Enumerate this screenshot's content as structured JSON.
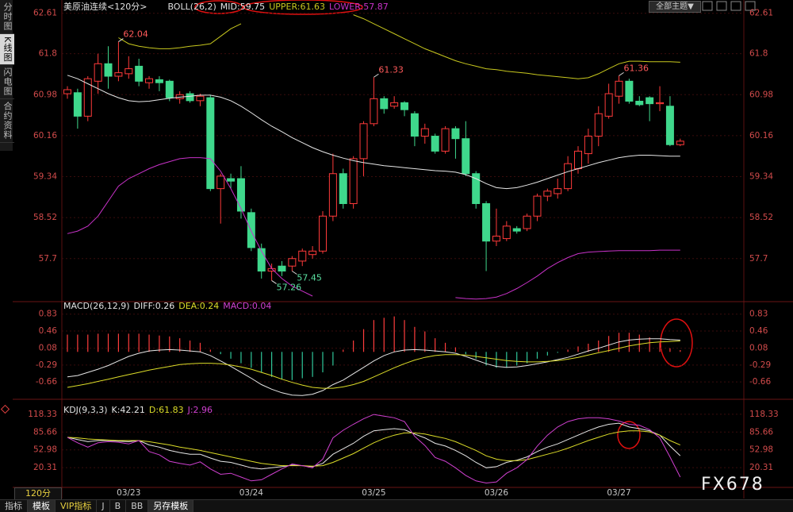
{
  "chart_data": [
    {
      "type": "candlestick",
      "title": "美原油连续<120分>",
      "indicator": "BOLL(26,2)",
      "categories": [
        null,
        null,
        null,
        null,
        null,
        null,
        "03/23",
        null,
        null,
        null,
        null,
        null,
        null,
        null,
        null,
        null,
        null,
        null,
        "03/24",
        null,
        null,
        null,
        null,
        null,
        null,
        null,
        null,
        null,
        null,
        null,
        "03/25",
        null,
        null,
        null,
        null,
        null,
        null,
        null,
        null,
        null,
        null,
        null,
        "03/26",
        null,
        null,
        null,
        null,
        null,
        null,
        null,
        null,
        null,
        null,
        null,
        "03/27",
        null,
        null,
        null,
        null,
        null,
        null
      ],
      "open": [
        61.0,
        61.02,
        60.55,
        61.25,
        61.6,
        61.35,
        61.4,
        61.55,
        61.22,
        61.28,
        61.25,
        60.9,
        61.0,
        60.86,
        60.92,
        59.1,
        59.3,
        59.3,
        58.62,
        57.9,
        57.45,
        57.55,
        57.55,
        57.65,
        57.78,
        57.85,
        58.55,
        59.4,
        58.8,
        59.7,
        60.4,
        60.9,
        60.75,
        60.82,
        60.6,
        60.15,
        60.15,
        59.85,
        60.3,
        60.1,
        59.4,
        58.8,
        58.05,
        58.1,
        58.3,
        58.3,
        58.55,
        58.95,
        59.0,
        59.1,
        59.5,
        59.8,
        60.15,
        60.55,
        60.95,
        61.25,
        60.85,
        60.92,
        60.8,
        60.75,
        59.98
      ],
      "high": [
        61.15,
        61.1,
        61.35,
        61.8,
        61.95,
        62.04,
        61.75,
        61.7,
        61.35,
        61.35,
        61.28,
        61.05,
        61.05,
        61.0,
        60.98,
        59.4,
        59.4,
        59.55,
        58.7,
        58.0,
        57.6,
        57.65,
        57.75,
        57.9,
        57.95,
        58.65,
        59.8,
        59.5,
        59.75,
        60.45,
        61.33,
        60.95,
        60.95,
        60.85,
        60.65,
        60.4,
        60.2,
        60.35,
        60.35,
        60.45,
        59.45,
        58.85,
        58.7,
        58.45,
        58.35,
        58.6,
        59.0,
        59.1,
        59.3,
        59.75,
        59.95,
        60.3,
        60.75,
        61.2,
        61.36,
        61.3,
        60.95,
        60.95,
        61.15,
        60.95,
        60.1
      ],
      "low": [
        60.9,
        60.3,
        60.45,
        61.0,
        61.1,
        61.25,
        61.3,
        61.15,
        61.1,
        61.05,
        60.85,
        60.8,
        60.82,
        60.75,
        59.05,
        58.4,
        59.1,
        58.5,
        57.85,
        57.3,
        57.26,
        57.35,
        57.45,
        57.55,
        57.7,
        57.8,
        58.45,
        58.7,
        58.7,
        59.35,
        60.35,
        60.6,
        60.7,
        60.55,
        59.95,
        60.0,
        59.8,
        59.8,
        59.7,
        59.35,
        58.7,
        57.45,
        57.95,
        58.05,
        58.2,
        58.25,
        58.45,
        58.85,
        58.9,
        59.05,
        59.4,
        59.6,
        59.95,
        60.5,
        60.8,
        60.8,
        60.75,
        60.45,
        60.65,
        59.95,
        59.95
      ],
      "close": [
        61.08,
        60.55,
        61.3,
        61.6,
        61.35,
        61.42,
        61.5,
        61.25,
        61.3,
        61.22,
        60.92,
        60.98,
        60.86,
        60.95,
        59.1,
        59.35,
        59.25,
        58.65,
        57.92,
        57.45,
        57.5,
        57.45,
        57.7,
        57.85,
        57.85,
        58.55,
        59.4,
        58.8,
        59.7,
        60.4,
        60.9,
        60.7,
        60.82,
        60.68,
        60.15,
        60.3,
        59.85,
        60.3,
        60.1,
        59.4,
        58.8,
        58.05,
        58.15,
        58.35,
        58.25,
        58.55,
        58.95,
        59.05,
        59.1,
        59.6,
        59.85,
        60.15,
        60.6,
        61.0,
        61.25,
        60.85,
        60.78,
        60.8,
        60.82,
        59.98,
        60.05
      ],
      "up_color": "#ff3a3a",
      "down_color": "#3fd88c",
      "series": [
        {
          "name": "MID:59.75",
          "color": "#e6e6e6",
          "values": [
            61.37,
            61.3,
            61.2,
            61.1,
            61.0,
            60.92,
            60.86,
            60.84,
            60.85,
            60.88,
            60.91,
            60.93,
            60.95,
            60.97,
            60.97,
            60.93,
            60.86,
            60.75,
            60.62,
            60.48,
            60.35,
            60.24,
            60.12,
            60.02,
            59.92,
            59.84,
            59.77,
            59.71,
            59.66,
            59.62,
            59.59,
            59.56,
            59.54,
            59.52,
            59.5,
            59.48,
            59.46,
            59.45,
            59.43,
            59.38,
            59.3,
            59.2,
            59.12,
            59.1,
            59.12,
            59.17,
            59.23,
            59.3,
            59.37,
            59.44,
            59.5,
            59.56,
            59.62,
            59.67,
            59.72,
            59.75,
            59.77,
            59.77,
            59.76,
            59.75,
            59.75
          ]
        },
        {
          "name": "UPPER:61.63",
          "color": "#c8c81e",
          "values": [
            null,
            null,
            null,
            null,
            null,
            62.12,
            62.0,
            61.95,
            61.92,
            61.9,
            61.9,
            61.92,
            61.95,
            61.97,
            62.0,
            62.15,
            62.3,
            62.4,
            null,
            null,
            null,
            null,
            null,
            null,
            null,
            null,
            null,
            null,
            62.58,
            62.5,
            62.4,
            62.3,
            62.2,
            62.1,
            62.0,
            61.9,
            61.82,
            61.74,
            61.66,
            61.6,
            61.55,
            61.5,
            61.48,
            61.45,
            61.43,
            61.41,
            61.38,
            61.36,
            61.34,
            61.32,
            61.3,
            61.32,
            61.4,
            61.5,
            61.6,
            61.65,
            61.65,
            61.64,
            61.64,
            61.64,
            61.63
          ]
        },
        {
          "name": "LOWER:57.87",
          "color": "#c832c8",
          "values": [
            58.2,
            58.25,
            58.35,
            58.55,
            58.85,
            59.15,
            59.3,
            59.4,
            59.5,
            59.58,
            59.64,
            59.7,
            59.72,
            59.72,
            59.7,
            59.45,
            59.1,
            58.7,
            58.25,
            57.85,
            57.5,
            57.3,
            57.15,
            57.05,
            56.95,
            null,
            null,
            null,
            null,
            null,
            null,
            null,
            null,
            null,
            null,
            null,
            null,
            null,
            56.92,
            56.9,
            56.89,
            56.9,
            56.93,
            57.0,
            57.1,
            57.22,
            57.35,
            57.5,
            57.62,
            57.72,
            57.8,
            57.83,
            57.84,
            57.85,
            57.86,
            57.86,
            57.86,
            57.86,
            57.87,
            57.87,
            57.87
          ]
        }
      ],
      "annotations": [
        62.04,
        57.26,
        61.33,
        57.45,
        61.36
      ],
      "ylim": [
        56.87,
        62.78
      ],
      "yticks": [
        62.61,
        61.8,
        60.98,
        60.16,
        59.34,
        58.52,
        57.7
      ],
      "grid": true
    },
    {
      "type": "macd",
      "indicator": "MACD(26,12,9)",
      "series": [
        {
          "name": "DIFF:0.26",
          "color": "#e6e6e6",
          "values": [
            -0.55,
            -0.52,
            -0.45,
            -0.38,
            -0.3,
            -0.2,
            -0.1,
            -0.03,
            0.02,
            0.04,
            0.05,
            0.04,
            0.02,
            0.0,
            -0.08,
            -0.2,
            -0.32,
            -0.45,
            -0.58,
            -0.72,
            -0.82,
            -0.9,
            -0.95,
            -0.96,
            -0.93,
            -0.85,
            -0.72,
            -0.62,
            -0.48,
            -0.34,
            -0.2,
            -0.08,
            0.0,
            0.04,
            0.05,
            0.04,
            0.02,
            0.0,
            -0.03,
            -0.1,
            -0.18,
            -0.26,
            -0.32,
            -0.34,
            -0.33,
            -0.3,
            -0.26,
            -0.22,
            -0.17,
            -0.12,
            -0.05,
            0.02,
            0.08,
            0.15,
            0.22,
            0.26,
            0.28,
            0.29,
            0.29,
            0.27,
            0.26
          ]
        },
        {
          "name": "DEA:0.24",
          "color": "#dcdc28",
          "values": [
            -0.78,
            -0.74,
            -0.7,
            -0.65,
            -0.6,
            -0.55,
            -0.5,
            -0.45,
            -0.4,
            -0.36,
            -0.32,
            -0.28,
            -0.26,
            -0.25,
            -0.25,
            -0.26,
            -0.29,
            -0.33,
            -0.38,
            -0.45,
            -0.52,
            -0.6,
            -0.67,
            -0.73,
            -0.78,
            -0.8,
            -0.8,
            -0.77,
            -0.72,
            -0.65,
            -0.55,
            -0.45,
            -0.35,
            -0.26,
            -0.18,
            -0.12,
            -0.08,
            -0.06,
            -0.06,
            -0.07,
            -0.1,
            -0.13,
            -0.16,
            -0.19,
            -0.21,
            -0.22,
            -0.22,
            -0.21,
            -0.19,
            -0.16,
            -0.12,
            -0.07,
            -0.02,
            0.03,
            0.08,
            0.13,
            0.17,
            0.2,
            0.22,
            0.23,
            0.24
          ]
        }
      ],
      "histogram": {
        "name": "MACD:0.04",
        "color": "#d040d0",
        "up_color": "#ff3c3c",
        "down_color": "#2fc79a",
        "values": [
          0.38,
          0.38,
          0.38,
          0.4,
          0.4,
          0.4,
          0.4,
          0.4,
          0.38,
          0.36,
          0.34,
          0.3,
          0.25,
          0.2,
          0.05,
          -0.05,
          -0.15,
          -0.25,
          -0.35,
          -0.45,
          -0.55,
          -0.6,
          -0.62,
          -0.58,
          -0.55,
          -0.45,
          -0.3,
          0.05,
          0.25,
          0.5,
          0.7,
          0.75,
          0.78,
          0.7,
          0.55,
          0.45,
          0.3,
          0.2,
          0.1,
          -0.05,
          -0.15,
          -0.3,
          -0.35,
          -0.35,
          -0.3,
          -0.25,
          -0.15,
          -0.08,
          -0.02,
          0.05,
          0.12,
          0.18,
          0.25,
          0.35,
          0.42,
          0.42,
          0.38,
          0.32,
          0.2,
          0.08,
          0.04
        ]
      },
      "ylim": [
        -0.99,
        1.07
      ],
      "yticks": [
        0.83,
        0.46,
        0.08,
        -0.29,
        -0.66
      ],
      "grid": true
    },
    {
      "type": "line",
      "indicator": "KDJ(9,3,3)",
      "series": [
        {
          "name": "K:42.21",
          "color": "#e6e6e6",
          "values": [
            76,
            72,
            68,
            70,
            70,
            69,
            68,
            70,
            62,
            58,
            52,
            48,
            45,
            45,
            38,
            32,
            30,
            25,
            20,
            18,
            20,
            22,
            25,
            24,
            22,
            28,
            45,
            55,
            65,
            78,
            88,
            90,
            92,
            90,
            82,
            75,
            65,
            60,
            52,
            42,
            30,
            20,
            22,
            30,
            34,
            40,
            50,
            58,
            64,
            72,
            80,
            88,
            95,
            100,
            102,
            95,
            92,
            88,
            80,
            60,
            42.21
          ]
        },
        {
          "name": "D:61.83",
          "color": "#dcdc28",
          "values": [
            76,
            75,
            73,
            72,
            71,
            70,
            70,
            70,
            68,
            65,
            62,
            58,
            55,
            52,
            48,
            44,
            40,
            36,
            32,
            28,
            26,
            24,
            24,
            24,
            23,
            24,
            30,
            38,
            46,
            56,
            66,
            74,
            80,
            84,
            84,
            82,
            78,
            74,
            68,
            60,
            52,
            42,
            36,
            33,
            33,
            35,
            40,
            45,
            50,
            56,
            63,
            70,
            76,
            82,
            86,
            88,
            88,
            86,
            80,
            70,
            61.83
          ]
        },
        {
          "name": "J:2.96",
          "color": "#d040d0",
          "values": [
            76,
            66,
            58,
            66,
            68,
            67,
            64,
            70,
            50,
            44,
            32,
            28,
            25,
            31,
            18,
            8,
            10,
            3,
            -4,
            -2,
            8,
            18,
            27,
            24,
            20,
            36,
            75,
            89,
            100,
            110,
            118,
            115,
            112,
            105,
            78,
            61,
            39,
            32,
            20,
            6,
            -4,
            -8,
            -6,
            10,
            20,
            35,
            60,
            80,
            95,
            105,
            110,
            112,
            112,
            110,
            106,
            100,
            98,
            90,
            75,
            40,
            2.96
          ]
        }
      ],
      "ylim": [
        -16,
        143
      ],
      "yticks": [
        118.33,
        85.66,
        52.98,
        20.31
      ],
      "grid": true
    }
  ],
  "ui": {
    "sidebar": [
      "分时图",
      "K线图",
      "闪电图",
      "合约资料"
    ],
    "period": "120分",
    "toolbar": [
      "指标",
      "模板",
      "VIP指标",
      "J",
      "B",
      "BB",
      "另存模板"
    ],
    "theme_button": "全部主题▼",
    "watermark": "FX678"
  }
}
